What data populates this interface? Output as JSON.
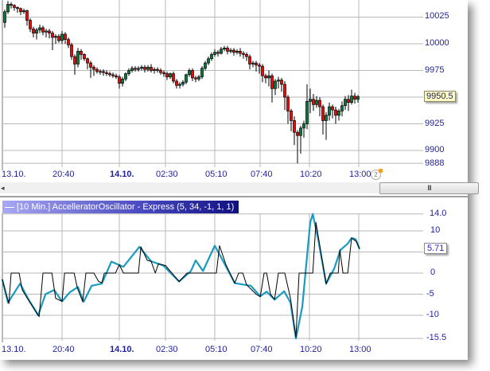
{
  "price_panel": {
    "y_labels": [
      "10025",
      "10000",
      "9975",
      "9925",
      "9900",
      "9888"
    ],
    "current_price": "9950.5",
    "time_labels": [
      "13.10.",
      "20:40",
      "14.10.",
      "02:30",
      "05:10",
      "07:40",
      "10:20",
      "13:00"
    ],
    "clock_icon_text": "2",
    "colors": {
      "up": "#007a3d",
      "down": "#ff0000",
      "grid": "#b8b8b8",
      "axis_text": "#1f1f9e"
    }
  },
  "scrollbar": {
    "left_arrow": "◂",
    "thumb_grip": "III"
  },
  "indicator_panel": {
    "header": "[10 Min.] AccelleratorOscillator - Express  (5, 34, -1, 1, 1)",
    "y_labels": [
      "14.0",
      "10",
      "0",
      "-5",
      "-10",
      "-15.5"
    ],
    "current_value": "5.71",
    "time_labels": [
      "13.10.",
      "20:40",
      "14.10.",
      "02:30",
      "05:10",
      "07:40",
      "10:20",
      "13:00"
    ],
    "colors": {
      "oscillator": "#1a9ac0",
      "signal": "#000000"
    }
  },
  "chart_data": [
    {
      "type": "candlestick",
      "interval": "10 Min.",
      "ylim": [
        9888,
        10040
      ],
      "y_ticks": [
        9888,
        9900,
        9925,
        9950,
        9975,
        10000,
        10025
      ],
      "grid": true,
      "open": [
        10020,
        10030,
        10037,
        10036,
        10034,
        10033,
        10030,
        10031,
        10022,
        10014,
        10010,
        10013,
        10015,
        10011,
        10012,
        10010,
        10006,
        10007,
        10003,
        10009,
        10004,
        9999,
        9988,
        9981,
        9993,
        9990,
        9986,
        9982,
        9978,
        9976,
        9974,
        9974,
        9973,
        9972,
        9971,
        9970,
        9969,
        9963,
        9967,
        9972,
        9975,
        9977,
        9976,
        9977,
        9978,
        9976,
        9978,
        9975,
        9976,
        9975,
        9973,
        9972,
        9969,
        9972,
        9965,
        9961,
        9962,
        9964,
        9971,
        9975,
        9968,
        9967,
        9969,
        9977,
        9982,
        9986,
        9990,
        9992,
        9991,
        9995,
        9996,
        9993,
        9994,
        9992,
        9993,
        9991,
        9990,
        9988,
        9981,
        9982,
        9980,
        9979,
        9970,
        9968,
        9970,
        9958,
        9965,
        9966,
        9962,
        9950,
        9937,
        9928,
        9917,
        9914,
        9921,
        9925,
        9946,
        9948,
        9943,
        9947,
        9941,
        9928,
        9933,
        9941,
        9938,
        9933,
        9937,
        9942,
        9948,
        9945,
        9951,
        9948
      ],
      "high": [
        10032,
        10040,
        10039,
        10037,
        10035,
        10034,
        10033,
        10032,
        10024,
        10016,
        10015,
        10018,
        10017,
        10014,
        10014,
        10012,
        10009,
        10009,
        10012,
        10011,
        10006,
        10001,
        9990,
        9996,
        9995,
        9991,
        9987,
        9984,
        9980,
        9978,
        9976,
        9976,
        9975,
        9974,
        9973,
        9972,
        9971,
        9969,
        9973,
        9977,
        9979,
        9979,
        9979,
        9980,
        9980,
        9980,
        9981,
        9978,
        9978,
        9977,
        9975,
        9974,
        9973,
        9974,
        9967,
        9964,
        9966,
        9972,
        9977,
        9977,
        9970,
        9971,
        9979,
        9984,
        9988,
        9992,
        9995,
        9994,
        9997,
        9998,
        9998,
        9996,
        9996,
        9995,
        9996,
        9993,
        9992,
        9990,
        9984,
        9984,
        9982,
        9981,
        9972,
        9975,
        9972,
        9967,
        9969,
        9968,
        9965,
        9952,
        9939,
        9932,
        9919,
        9923,
        9928,
        9962,
        9958,
        9953,
        9951,
        9950,
        9943,
        9936,
        9945,
        9943,
        9941,
        9939,
        9946,
        9951,
        9952,
        9957,
        9954,
        9952
      ],
      "low": [
        10015,
        10028,
        10033,
        10031,
        10029,
        10027,
        10028,
        10017,
        10011,
        10006,
        10004,
        10010,
        10008,
        10006,
        10005,
        9994,
        10000,
        10001,
        10000,
        10000,
        9996,
        9985,
        9971,
        9978,
        9985,
        9984,
        9976,
        9968,
        9970,
        9972,
        9971,
        9970,
        9970,
        9969,
        9968,
        9967,
        9958,
        9960,
        9965,
        9970,
        9973,
        9974,
        9974,
        9975,
        9973,
        9974,
        9973,
        9972,
        9973,
        9971,
        9969,
        9966,
        9967,
        9963,
        9958,
        9958,
        9960,
        9962,
        9969,
        9965,
        9964,
        9965,
        9967,
        9975,
        9980,
        9984,
        9988,
        9988,
        9990,
        9993,
        9990,
        9991,
        9989,
        9990,
        9988,
        9986,
        9984,
        9976,
        9978,
        9974,
        9972,
        9964,
        9963,
        9960,
        9945,
        9952,
        9958,
        9955,
        9938,
        9925,
        9918,
        9905,
        9888,
        9897,
        9912,
        9920,
        9935,
        9937,
        9940,
        9932,
        9915,
        9910,
        9928,
        9930,
        9925,
        9928,
        9932,
        9938,
        9937,
        9943,
        9944,
        9945
      ],
      "close": [
        10030,
        10037,
        10036,
        10034,
        10033,
        10030,
        10031,
        10022,
        10014,
        10010,
        10013,
        10015,
        10011,
        10012,
        10010,
        10006,
        10007,
        10003,
        10009,
        10004,
        9999,
        9988,
        9981,
        9993,
        9990,
        9986,
        9982,
        9978,
        9976,
        9974,
        9974,
        9973,
        9972,
        9971,
        9970,
        9969,
        9963,
        9967,
        9972,
        9975,
        9977,
        9976,
        9977,
        9978,
        9976,
        9978,
        9975,
        9976,
        9975,
        9973,
        9972,
        9969,
        9972,
        9965,
        9961,
        9962,
        9964,
        9971,
        9975,
        9968,
        9967,
        9969,
        9977,
        9982,
        9986,
        9990,
        9992,
        9991,
        9995,
        9996,
        9993,
        9994,
        9992,
        9993,
        9991,
        9990,
        9988,
        9981,
        9982,
        9980,
        9979,
        9970,
        9968,
        9970,
        9958,
        9965,
        9966,
        9962,
        9950,
        9937,
        9928,
        9917,
        9914,
        9921,
        9925,
        9946,
        9948,
        9943,
        9947,
        9941,
        9928,
        9933,
        9941,
        9938,
        9933,
        9937,
        9942,
        9948,
        9945,
        9951,
        9948,
        9950.5
      ]
    },
    {
      "type": "line",
      "ylim": [
        -15.5,
        14.0
      ],
      "y_ticks": [
        -15.5,
        -10,
        -5,
        0,
        5,
        10,
        14.0
      ],
      "grid": true,
      "series": [
        {
          "points": [
            [
              -0.8,
              -1.5
            ],
            [
              1,
              -7
            ],
            [
              4.8,
              -2.5
            ],
            [
              7.3,
              -6
            ],
            [
              10.5,
              -10
            ],
            [
              12.8,
              -5
            ],
            [
              15.5,
              -4
            ],
            [
              18,
              -6.7
            ],
            [
              20.5,
              -4.5
            ],
            [
              23,
              -3.3
            ],
            [
              24.8,
              -6.8
            ],
            [
              27.3,
              -3
            ],
            [
              30.5,
              -2.5
            ],
            [
              33.5,
              2.7
            ],
            [
              37.3,
              1.5
            ],
            [
              42.3,
              6.2
            ],
            [
              46,
              2.8
            ],
            [
              49.8,
              1.8
            ],
            [
              54.8,
              -2
            ],
            [
              58.5,
              0.5
            ],
            [
              60,
              3
            ],
            [
              62.3,
              0.5
            ],
            [
              66,
              6.5
            ],
            [
              68.5,
              3
            ],
            [
              72.3,
              -2.4
            ],
            [
              77.3,
              -3
            ],
            [
              80.3,
              -5.5
            ],
            [
              82.3,
              -4.4
            ],
            [
              84.8,
              -6.3
            ],
            [
              87.8,
              -4.3
            ],
            [
              89.8,
              -7
            ],
            [
              91.5,
              -15.5
            ],
            [
              93.5,
              -8
            ],
            [
              96,
              12
            ],
            [
              96.8,
              14
            ],
            [
              98.5,
              8
            ],
            [
              101,
              -2.5
            ],
            [
              103.5,
              1
            ],
            [
              105.5,
              5.5
            ],
            [
              107.8,
              7
            ],
            [
              109,
              8.3
            ],
            [
              110.3,
              8
            ],
            [
              111.5,
              5.71
            ]
          ]
        },
        {
          "points": [
            [
              -0.8,
              -1.5
            ],
            [
              1.3,
              -7.2
            ],
            [
              2,
              0
            ],
            [
              4.5,
              0
            ],
            [
              5.5,
              -4
            ],
            [
              7.5,
              -6.5
            ],
            [
              10.8,
              -10.3
            ],
            [
              12,
              0
            ],
            [
              14.8,
              0
            ],
            [
              16,
              -6
            ],
            [
              18,
              -6.7
            ],
            [
              18.8,
              0
            ],
            [
              21.8,
              0
            ],
            [
              22.8,
              -3.5
            ],
            [
              24.5,
              -6.8
            ],
            [
              25.5,
              0
            ],
            [
              28,
              0
            ],
            [
              29.5,
              -2
            ],
            [
              30.5,
              -2.3
            ],
            [
              31.3,
              0
            ],
            [
              34.8,
              0
            ],
            [
              36,
              2
            ],
            [
              37.3,
              0
            ],
            [
              42,
              0
            ],
            [
              42.8,
              6.2
            ],
            [
              44.8,
              3
            ],
            [
              46,
              2.8
            ],
            [
              47.3,
              0
            ],
            [
              48.3,
              2.2
            ],
            [
              50.5,
              1.8
            ],
            [
              54.8,
              -2
            ],
            [
              57.3,
              0
            ],
            [
              66.5,
              0
            ],
            [
              67.5,
              6.5
            ],
            [
              69.5,
              2
            ],
            [
              72.3,
              -2.4
            ],
            [
              73.5,
              0
            ],
            [
              74.8,
              0
            ],
            [
              76,
              -2.8
            ],
            [
              79,
              -5
            ],
            [
              80.3,
              -5.6
            ],
            [
              81.5,
              0
            ],
            [
              82.3,
              0
            ],
            [
              83.5,
              -5
            ],
            [
              84.8,
              -6.2
            ],
            [
              86,
              0
            ],
            [
              88,
              0
            ],
            [
              89.8,
              -6
            ],
            [
              91.5,
              -15.2
            ],
            [
              92.5,
              0
            ],
            [
              96.8,
              0
            ],
            [
              97.8,
              12
            ],
            [
              101,
              -2.5
            ],
            [
              102.3,
              0
            ],
            [
              104.8,
              0
            ],
            [
              105.3,
              5.5
            ],
            [
              106.3,
              0
            ],
            [
              107.8,
              0
            ],
            [
              109,
              8.3
            ],
            [
              110.5,
              7.5
            ],
            [
              111.5,
              5.71
            ]
          ]
        }
      ]
    }
  ]
}
